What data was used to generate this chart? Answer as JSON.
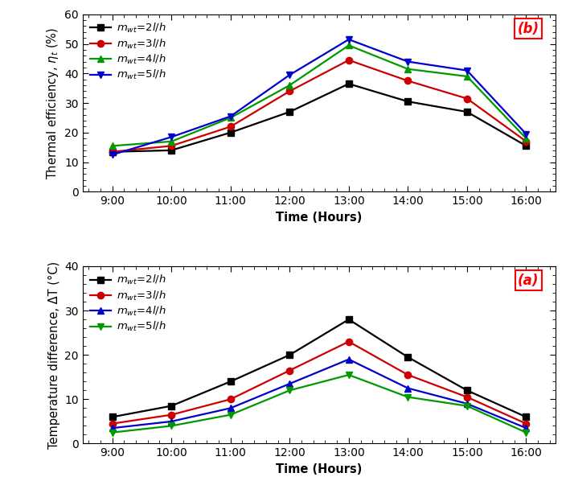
{
  "time_labels": [
    "9:00",
    "10:00",
    "11:00",
    "12:00",
    "13:00",
    "14:00",
    "15:00",
    "16:00"
  ],
  "time_x": [
    9,
    10,
    11,
    12,
    13,
    14,
    15,
    16
  ],
  "eta_series": {
    "m2": [
      13.5,
      14.0,
      20.0,
      27.0,
      36.5,
      30.5,
      27.0,
      15.5
    ],
    "m3": [
      13.5,
      15.5,
      22.0,
      34.0,
      44.5,
      37.5,
      31.5,
      17.0
    ],
    "m4": [
      15.5,
      17.0,
      25.0,
      36.0,
      49.5,
      41.5,
      39.0,
      18.0
    ],
    "m5": [
      12.5,
      18.5,
      25.5,
      39.5,
      51.5,
      44.0,
      41.0,
      19.5
    ]
  },
  "dT_series": {
    "m2": [
      6.0,
      8.5,
      14.0,
      20.0,
      28.0,
      19.5,
      12.0,
      6.0
    ],
    "m3": [
      4.5,
      6.5,
      10.0,
      16.5,
      23.0,
      15.5,
      10.5,
      4.5
    ],
    "m4": [
      3.5,
      5.0,
      8.0,
      13.5,
      19.0,
      12.5,
      9.0,
      3.5
    ],
    "m5": [
      2.5,
      4.0,
      6.5,
      12.0,
      15.5,
      10.5,
      8.5,
      2.5
    ]
  },
  "eta_colors": {
    "m2": "#000000",
    "m3": "#cc0000",
    "m4": "#009900",
    "m5": "#0000cc"
  },
  "dT_colors": {
    "m2": "#000000",
    "m3": "#cc0000",
    "m4": "#0000cc",
    "m5": "#009900"
  },
  "markers": {
    "m2": "s",
    "m3": "o",
    "m4": "^",
    "m5": "v"
  },
  "eta_labels": {
    "m2": "$m_{wt}$=2$l/h$",
    "m3": "$m_{wt}$=3$l/h$",
    "m4": "$m_{wt}$=4$l/h$",
    "m5": "$m_{wt}$=5$l/h$"
  },
  "dT_labels": {
    "m2": "$m_{wt}$=2$l/h$",
    "m3": "$m_{wt}$=3$l/h$",
    "m4": "$m_{wt}$=4$l/h$",
    "m5": "$m_{wt}$=5$l/h$"
  },
  "eta_ylim": [
    0,
    60
  ],
  "eta_yticks": [
    0,
    10,
    20,
    30,
    40,
    50,
    60
  ],
  "eta_ylabel": "Thermal efficiency, $\\eta_t$ (%)",
  "dT_ylim": [
    0,
    40
  ],
  "dT_yticks": [
    0,
    10,
    20,
    30,
    40
  ],
  "dT_ylabel": "Temperature difference, ΔT (°C)",
  "xlabel": "Time (Hours)",
  "label_b": "(b)",
  "label_a": "(a)",
  "linewidth": 1.6,
  "markersize": 6,
  "fontsize_label": 10.5,
  "fontsize_tick": 10,
  "fontsize_legend": 9.5,
  "fontsize_annot": 12
}
